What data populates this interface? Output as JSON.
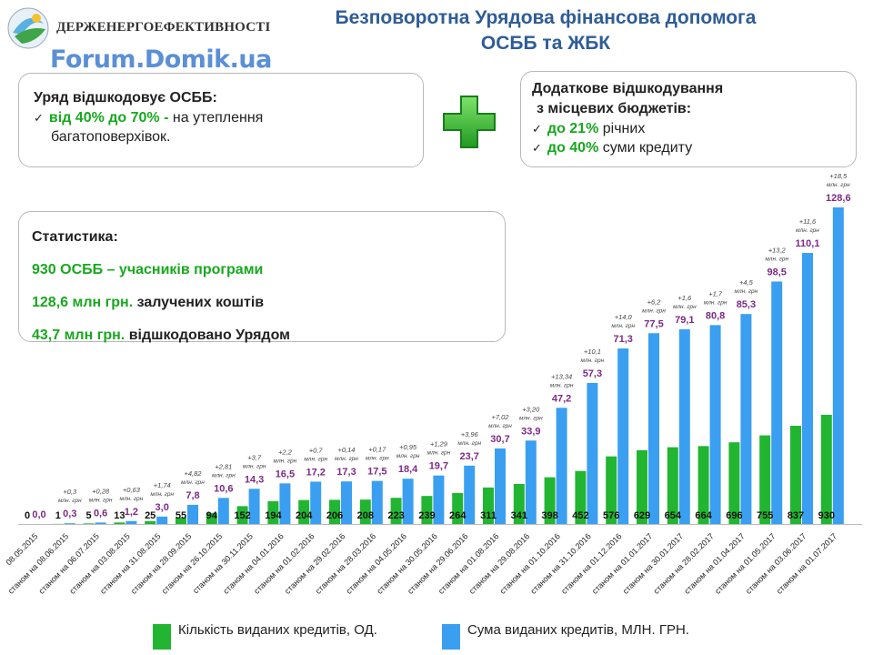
{
  "header": {
    "agency": "ДЕРЖЕНЕРГОЕФЕКТИВНОСТІ",
    "watermark": "Forum.Domik.ua",
    "title_line1": "Безповоротна Урядова фінансова допомога",
    "title_line2": "ОСББ та ЖБК"
  },
  "box1": {
    "heading": "Уряд відшкодовує ОСББ:",
    "item_green": "від 40% до 70% -",
    "item_rest": " на утеплення",
    "item_line2": "багатоповерхівок."
  },
  "box2": {
    "heading_line1": "Додаткове відшкодування",
    "heading_line2": "з місцевих бюджетів:",
    "item1_green": "до 21%",
    "item1_rest": " річних",
    "item2_green": "до 40%",
    "item2_rest": " суми кредиту"
  },
  "stats": {
    "heading": "Статистика:",
    "line1": "930 ОСББ – учасників програми",
    "line2_green": "128,6 млн грн.",
    "line2_rest": " залучених коштів",
    "line3_green": "43,7 млн грн.",
    "line3_rest": " відшкодовано Урядом"
  },
  "colors": {
    "green_bar": "#22b532",
    "blue_bar": "#3a9ff0",
    "title": "#2f5c96",
    "accent_green": "#18a81f",
    "increment_label": "#444444",
    "amount_label": "#7d2a86"
  },
  "chart_data": {
    "type": "bar",
    "categories": [
      "08.05.2015",
      "станом на 08.06.2015",
      "станом на 06.07.2015",
      "станом на 03.08.2015",
      "станом на 31.08.2015",
      "станом на 28.09.2015",
      "станом на 26.10.2015",
      "станом на 30.11.2015",
      "станом на 04.01.2016",
      "станом на 01.02.2016",
      "станом на 29.02.2016",
      "станом на 28.03.2016",
      "станом на 04.05.2016",
      "станом на 30.05.2016",
      "станом на 29.06.2016",
      "станом на 01.08.2016",
      "станом на 29.08.2016",
      "станом на 01.10.2016",
      "станом на 31.10.2016",
      "станом на 01.12.2016",
      "станом на 01.01.2017",
      "станом на 30.01.2017",
      "станом на 28.02.2017",
      "станом на 01.04.2017",
      "станом на 01.05.2017",
      "станом на 03.06.2017",
      "станом на 01.07.2017"
    ],
    "series": [
      {
        "name": "Кількість виданих кредитів, ОД.",
        "values": [
          0,
          1,
          5,
          13,
          25,
          55,
          94,
          152,
          194,
          204,
          206,
          208,
          223,
          239,
          264,
          311,
          341,
          398,
          452,
          576,
          629,
          654,
          664,
          696,
          755,
          837,
          930
        ],
        "labels": [
          "0",
          "1",
          "5",
          "13",
          "25",
          "55",
          "94",
          "152",
          "194",
          "204",
          "206",
          "208",
          "223",
          "239",
          "264",
          "311",
          "341",
          "398",
          "452",
          "576",
          "629",
          "654",
          "664",
          "696",
          "755",
          "837",
          "930"
        ]
      },
      {
        "name": "Сума виданих кредитів, МЛН. ГРН.",
        "values": [
          0,
          0.3,
          0.6,
          1.2,
          3.0,
          7.8,
          10.6,
          14.3,
          16.5,
          17.2,
          17.3,
          17.5,
          18.4,
          19.7,
          23.7,
          30.7,
          33.9,
          47.2,
          57.3,
          71.3,
          77.5,
          79.1,
          80.8,
          85.3,
          98.5,
          110.1,
          128.6
        ],
        "labels": [
          "0,0",
          "0,3",
          "0,6",
          "1,2",
          "3,0",
          "7,8",
          "10,6",
          "14,3",
          "16,5",
          "17,2",
          "17,3",
          "17,5",
          "18,4",
          "19,7",
          "23,7",
          "30,7",
          "33,9",
          "47,2",
          "57,3",
          "71,3",
          "77,5",
          "79,1",
          "80,8",
          "85,3",
          "98,5",
          "110,1",
          "128,6"
        ]
      }
    ],
    "increments": [
      "",
      "+0,3",
      "+0,28",
      "+0,63",
      "+1,74",
      "+4,82",
      "+2,81",
      "+3,7",
      "+2,2",
      "+0,7",
      "+0,14",
      "+0,17",
      "+0,95",
      "+1,29",
      "+3,96",
      "+7,02",
      "+3,20",
      "+13,34",
      "+10,1",
      "+14,0",
      "+6,2",
      "+1,6",
      "+1,7",
      "+4,5",
      "+13,2",
      "+11,6",
      "+18,5"
    ],
    "increment_unit": "млн. грн",
    "legend_position": "bottom",
    "grid": false
  }
}
